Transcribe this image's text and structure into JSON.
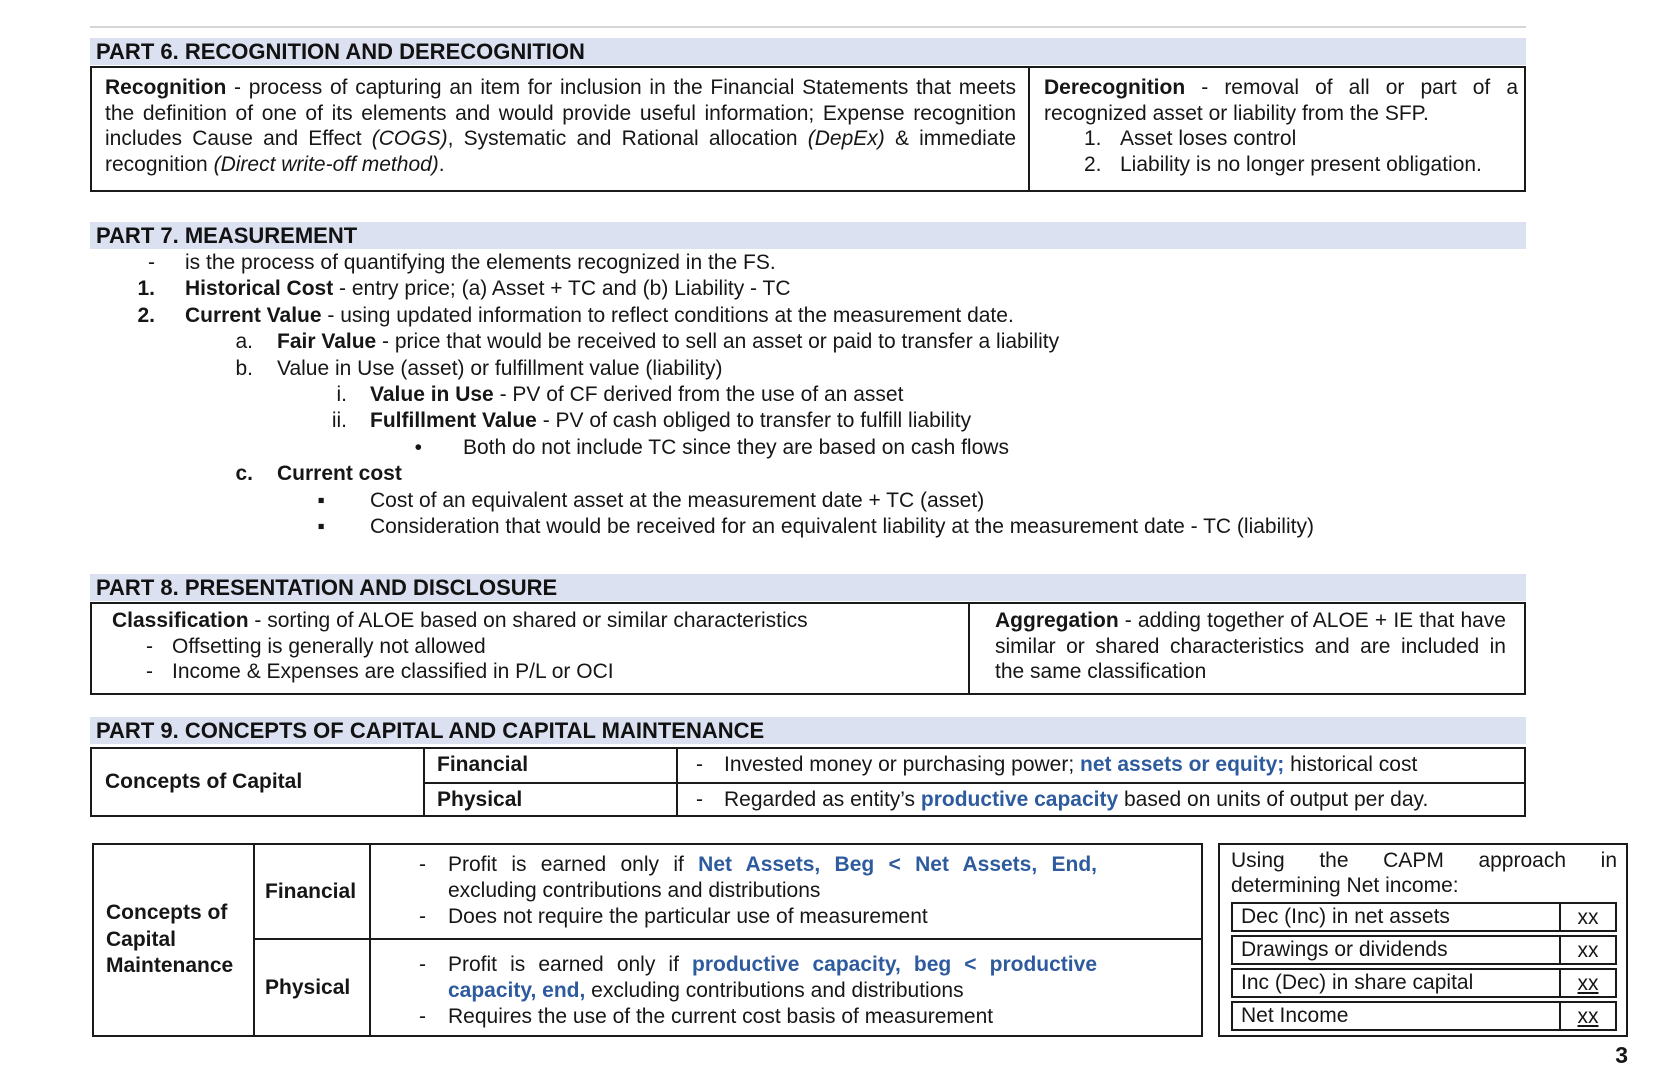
{
  "colors": {
    "bar_bg": "#dce1f1",
    "accent_blue": "#2e5b9e",
    "border": "#1a1a1a"
  },
  "page": {
    "number": "3"
  },
  "part6": {
    "title": "PART 6. RECOGNITION AND DERECOGNITION",
    "recognition": [
      {
        "t": "Recognition",
        "b": true
      },
      {
        "t": " - process of capturing an item for inclusion in the Financial Statements that meets the definition of one of its elements and would provide useful information; Expense recognition includes Cause and Effect "
      },
      {
        "t": "(COGS)",
        "i": true
      },
      {
        "t": ", Systematic and Rational allocation "
      },
      {
        "t": "(DepEx)",
        "i": true
      },
      {
        "t": " & immediate recognition "
      },
      {
        "t": "(Direct write-off method)",
        "i": true
      },
      {
        "t": "."
      }
    ],
    "derecognition": {
      "intro": [
        {
          "t": "Derecognition",
          "b": true
        },
        {
          "t": " - removal of all or part of a recognized asset or liability from the SFP."
        }
      ],
      "items": [
        {
          "n": "1.",
          "t": "Asset loses control"
        },
        {
          "n": "2.",
          "t": "Liability is no longer present obligation."
        }
      ]
    }
  },
  "part7": {
    "title": "PART 7. MEASUREMENT",
    "items": [
      {
        "marker": "-",
        "segments": [
          {
            "t": "is the process of quantifying the elements recognized in the FS."
          }
        ]
      },
      {
        "marker": "1.",
        "segments": [
          {
            "t": "Historical Cost",
            "b": true
          },
          {
            "t": " - entry price; (a) Asset + TC and (b) Liability - TC"
          }
        ]
      },
      {
        "marker": "2.",
        "segments": [
          {
            "t": "Current Value",
            "b": true
          },
          {
            "t": " - using updated information to reflect conditions at the measurement date."
          }
        ]
      },
      {
        "marker": "a.",
        "segments": [
          {
            "t": "Fair Value",
            "b": true
          },
          {
            "t": " - price that would be received to sell an asset or paid to transfer a liability"
          }
        ]
      },
      {
        "marker": "b.",
        "segments": [
          {
            "t": "Value in Use (asset) or fulfillment value (liability)"
          }
        ]
      },
      {
        "marker": "i.",
        "segments": [
          {
            "t": "Value in Use",
            "b": true
          },
          {
            "t": " - PV of CF derived from the use of an asset"
          }
        ]
      },
      {
        "marker": "ii.",
        "segments": [
          {
            "t": "Fulfillment Value",
            "b": true
          },
          {
            "t": " - PV of cash obliged to transfer to fulfill liability"
          }
        ]
      },
      {
        "marker": "•",
        "segments": [
          {
            "t": "Both do not include TC since they are based on cash flows"
          }
        ]
      },
      {
        "marker": "c.",
        "segments": [
          {
            "t": "Current cost",
            "b": true
          }
        ]
      },
      {
        "marker": "▪",
        "segments": [
          {
            "t": "Cost of an equivalent asset at the measurement date + TC (asset)"
          }
        ]
      },
      {
        "marker": "▪",
        "segments": [
          {
            "t": "Consideration that would be received for an equivalent liability at the measurement date - TC (liability)"
          }
        ]
      }
    ]
  },
  "part8": {
    "title": "PART 8. PRESENTATION AND DISCLOSURE",
    "classification": {
      "heading": [
        {
          "t": "Classification",
          "b": true
        },
        {
          "t": " - sorting of ALOE based on shared or similar characteristics"
        }
      ],
      "bullets": [
        {
          "marker": "-",
          "text": "Offsetting is generally not allowed"
        },
        {
          "marker": "-",
          "text": "Income & Expenses are classified in P/L or OCI"
        }
      ]
    },
    "aggregation": [
      {
        "t": "Aggregation",
        "b": true
      },
      {
        "t": " - adding together of ALOE + IE that have similar or shared characteristics and are included in the same classification"
      }
    ]
  },
  "part9": {
    "title": "PART 9. CONCEPTS OF CAPITAL AND CAPITAL MAINTENANCE",
    "capital": {
      "label": "Concepts of Capital",
      "rows": [
        {
          "type": "Financial",
          "marker": "-",
          "segments": [
            {
              "t": "Invested money or purchasing power; "
            },
            {
              "t": "net assets or equity;",
              "b": true,
              "c": true
            },
            {
              "t": " historical cost"
            }
          ]
        },
        {
          "type": "Physical",
          "marker": "-",
          "segments": [
            {
              "t": "Regarded as entity’s "
            },
            {
              "t": "productive capacity",
              "b": true,
              "c": true
            },
            {
              "t": " based on units of output per day."
            }
          ]
        }
      ]
    }
  },
  "bottom": {
    "label_lines": [
      "Concepts of",
      "Capital",
      "Maintenance"
    ],
    "rows": [
      {
        "type": "Financial",
        "bullets": [
          {
            "marker": "-",
            "segments": [
              {
                "t": "Profit is earned only if "
              },
              {
                "t": "Net Assets, Beg < Net Assets, End,",
                "b": true,
                "c": true
              },
              {
                "t": " excluding contributions and distributions"
              }
            ]
          },
          {
            "marker": "-",
            "segments": [
              {
                "t": "Does not require the particular use of measurement"
              }
            ]
          }
        ]
      },
      {
        "type": "Physical",
        "bullets": [
          {
            "marker": "-",
            "segments": [
              {
                "t": "Profit is earned only if "
              },
              {
                "t": "productive capacity, beg < productive capacity, end,",
                "b": true,
                "c": true
              },
              {
                "t": " excluding contributions and distributions"
              }
            ]
          },
          {
            "marker": "-",
            "segments": [
              {
                "t": "Requires the use of the current cost basis of measurement"
              }
            ]
          }
        ]
      }
    ],
    "capm": {
      "heading": "Using the CAPM approach in determining Net income:",
      "rows": [
        {
          "label": "Dec (Inc) in net assets",
          "value": "xx"
        },
        {
          "label": "Drawings or dividends",
          "value": "xx"
        },
        {
          "label": "Inc (Dec) in share capital",
          "value": "xx"
        },
        {
          "label": "Net Income",
          "value": "xx"
        }
      ]
    }
  }
}
